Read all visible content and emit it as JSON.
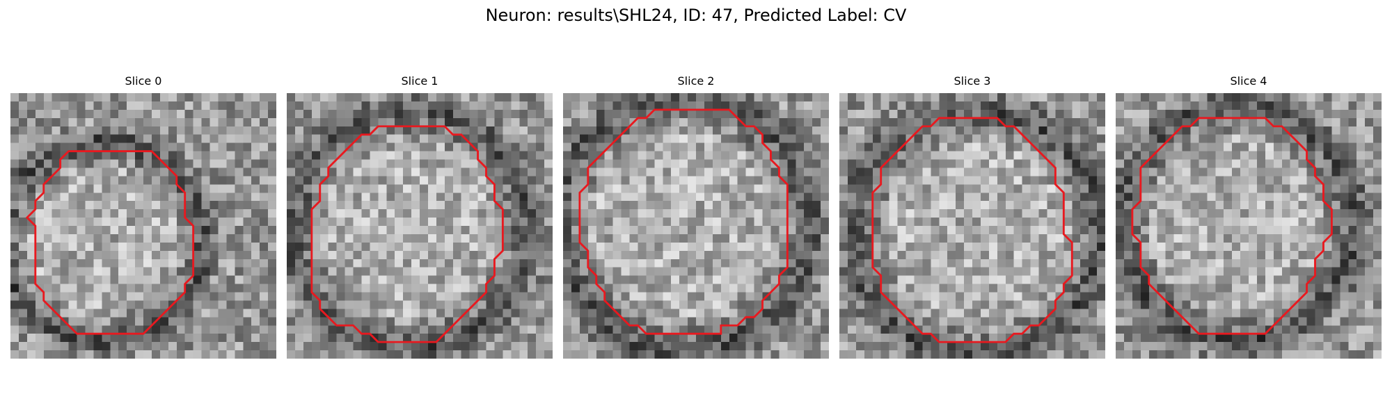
{
  "figure": {
    "title": "Neuron: results\\SHL24, ID: 47, Predicted Label: CV"
  },
  "contour_color": "#e8191f",
  "slices": [
    {
      "label": "Slice 0",
      "image_kind": "grayscale-micrograph",
      "contour": [
        [
          7,
          7
        ],
        [
          17,
          7
        ],
        [
          20,
          10
        ],
        [
          20,
          11
        ],
        [
          21,
          12
        ],
        [
          21,
          15
        ],
        [
          22,
          16
        ],
        [
          22,
          22
        ],
        [
          21,
          23
        ],
        [
          21,
          24
        ],
        [
          20,
          25
        ],
        [
          19,
          26
        ],
        [
          17,
          28
        ],
        [
          16,
          29
        ],
        [
          8,
          29
        ],
        [
          7,
          28
        ],
        [
          5,
          26
        ],
        [
          4,
          25
        ],
        [
          4,
          24
        ],
        [
          3,
          23
        ],
        [
          3,
          17
        ],
        [
          3,
          16
        ],
        [
          2,
          15
        ],
        [
          3,
          14
        ],
        [
          3,
          13
        ],
        [
          4,
          12
        ],
        [
          4,
          11
        ],
        [
          5,
          10
        ],
        [
          6,
          9
        ],
        [
          6,
          8
        ]
      ]
    },
    {
      "label": "Slice 1",
      "image_kind": "grayscale-micrograph",
      "contour": [
        [
          12,
          4
        ],
        [
          19,
          4
        ],
        [
          20,
          5
        ],
        [
          21,
          5
        ],
        [
          22,
          6
        ],
        [
          23,
          7
        ],
        [
          23,
          8
        ],
        [
          24,
          9
        ],
        [
          24,
          10
        ],
        [
          25,
          11
        ],
        [
          25,
          13
        ],
        [
          26,
          14
        ],
        [
          26,
          19
        ],
        [
          25,
          20
        ],
        [
          25,
          22
        ],
        [
          24,
          23
        ],
        [
          24,
          24
        ],
        [
          23,
          25
        ],
        [
          22,
          26
        ],
        [
          21,
          27
        ],
        [
          20,
          28
        ],
        [
          19,
          29
        ],
        [
          18,
          30
        ],
        [
          11,
          30
        ],
        [
          10,
          29
        ],
        [
          9,
          29
        ],
        [
          8,
          28
        ],
        [
          6,
          28
        ],
        [
          5,
          27
        ],
        [
          4,
          26
        ],
        [
          4,
          25
        ],
        [
          3,
          24
        ],
        [
          3,
          14
        ],
        [
          4,
          13
        ],
        [
          4,
          11
        ],
        [
          5,
          10
        ],
        [
          5,
          9
        ],
        [
          6,
          8
        ],
        [
          7,
          7
        ],
        [
          8,
          6
        ],
        [
          9,
          5
        ],
        [
          10,
          5
        ],
        [
          11,
          4
        ]
      ]
    },
    {
      "label": "Slice 2",
      "image_kind": "grayscale-micrograph",
      "contour": [
        [
          11,
          2
        ],
        [
          20,
          2
        ],
        [
          21,
          3
        ],
        [
          22,
          4
        ],
        [
          23,
          4
        ],
        [
          24,
          5
        ],
        [
          24,
          6
        ],
        [
          25,
          7
        ],
        [
          25,
          8
        ],
        [
          26,
          9
        ],
        [
          26,
          10
        ],
        [
          27,
          11
        ],
        [
          27,
          21
        ],
        [
          26,
          22
        ],
        [
          26,
          23
        ],
        [
          25,
          24
        ],
        [
          24,
          25
        ],
        [
          24,
          26
        ],
        [
          23,
          27
        ],
        [
          22,
          27
        ],
        [
          21,
          28
        ],
        [
          19,
          28
        ],
        [
          19,
          29
        ],
        [
          10,
          29
        ],
        [
          9,
          28
        ],
        [
          8,
          28
        ],
        [
          7,
          27
        ],
        [
          6,
          26
        ],
        [
          5,
          25
        ],
        [
          5,
          24
        ],
        [
          4,
          23
        ],
        [
          4,
          22
        ],
        [
          3,
          21
        ],
        [
          3,
          19
        ],
        [
          2,
          18
        ],
        [
          2,
          12
        ],
        [
          3,
          11
        ],
        [
          3,
          9
        ],
        [
          4,
          8
        ],
        [
          5,
          7
        ],
        [
          6,
          6
        ],
        [
          7,
          5
        ],
        [
          8,
          4
        ],
        [
          9,
          3
        ],
        [
          10,
          3
        ]
      ]
    },
    {
      "label": "Slice 3",
      "image_kind": "grayscale-micrograph",
      "contour": [
        [
          12,
          3
        ],
        [
          19,
          3
        ],
        [
          20,
          4
        ],
        [
          21,
          4
        ],
        [
          22,
          5
        ],
        [
          23,
          6
        ],
        [
          24,
          7
        ],
        [
          25,
          8
        ],
        [
          26,
          9
        ],
        [
          26,
          11
        ],
        [
          27,
          12
        ],
        [
          27,
          17
        ],
        [
          28,
          18
        ],
        [
          28,
          22
        ],
        [
          27,
          23
        ],
        [
          27,
          24
        ],
        [
          26,
          25
        ],
        [
          26,
          26
        ],
        [
          25,
          27
        ],
        [
          24,
          28
        ],
        [
          23,
          28
        ],
        [
          22,
          29
        ],
        [
          21,
          29
        ],
        [
          20,
          30
        ],
        [
          12,
          30
        ],
        [
          11,
          29
        ],
        [
          10,
          29
        ],
        [
          9,
          28
        ],
        [
          8,
          27
        ],
        [
          7,
          26
        ],
        [
          6,
          25
        ],
        [
          5,
          24
        ],
        [
          5,
          22
        ],
        [
          4,
          21
        ],
        [
          4,
          12
        ],
        [
          5,
          11
        ],
        [
          5,
          9
        ],
        [
          6,
          8
        ],
        [
          7,
          7
        ],
        [
          8,
          6
        ],
        [
          9,
          5
        ],
        [
          10,
          4
        ],
        [
          11,
          4
        ]
      ]
    },
    {
      "label": "Slice 4",
      "image_kind": "grayscale-micrograph",
      "contour": [
        [
          10,
          3
        ],
        [
          18,
          3
        ],
        [
          19,
          4
        ],
        [
          20,
          4
        ],
        [
          21,
          5
        ],
        [
          22,
          6
        ],
        [
          23,
          7
        ],
        [
          23,
          8
        ],
        [
          24,
          9
        ],
        [
          24,
          10
        ],
        [
          25,
          11
        ],
        [
          25,
          13
        ],
        [
          26,
          14
        ],
        [
          26,
          17
        ],
        [
          25,
          18
        ],
        [
          25,
          19
        ],
        [
          24,
          20
        ],
        [
          24,
          22
        ],
        [
          23,
          23
        ],
        [
          23,
          24
        ],
        [
          22,
          25
        ],
        [
          21,
          26
        ],
        [
          20,
          27
        ],
        [
          19,
          28
        ],
        [
          18,
          29
        ],
        [
          10,
          29
        ],
        [
          9,
          28
        ],
        [
          8,
          27
        ],
        [
          7,
          26
        ],
        [
          6,
          25
        ],
        [
          5,
          24
        ],
        [
          4,
          23
        ],
        [
          4,
          22
        ],
        [
          3,
          21
        ],
        [
          3,
          18
        ],
        [
          2,
          17
        ],
        [
          2,
          14
        ],
        [
          3,
          13
        ],
        [
          3,
          9
        ],
        [
          4,
          8
        ],
        [
          5,
          7
        ],
        [
          6,
          6
        ],
        [
          7,
          5
        ],
        [
          8,
          4
        ],
        [
          9,
          4
        ]
      ]
    }
  ]
}
